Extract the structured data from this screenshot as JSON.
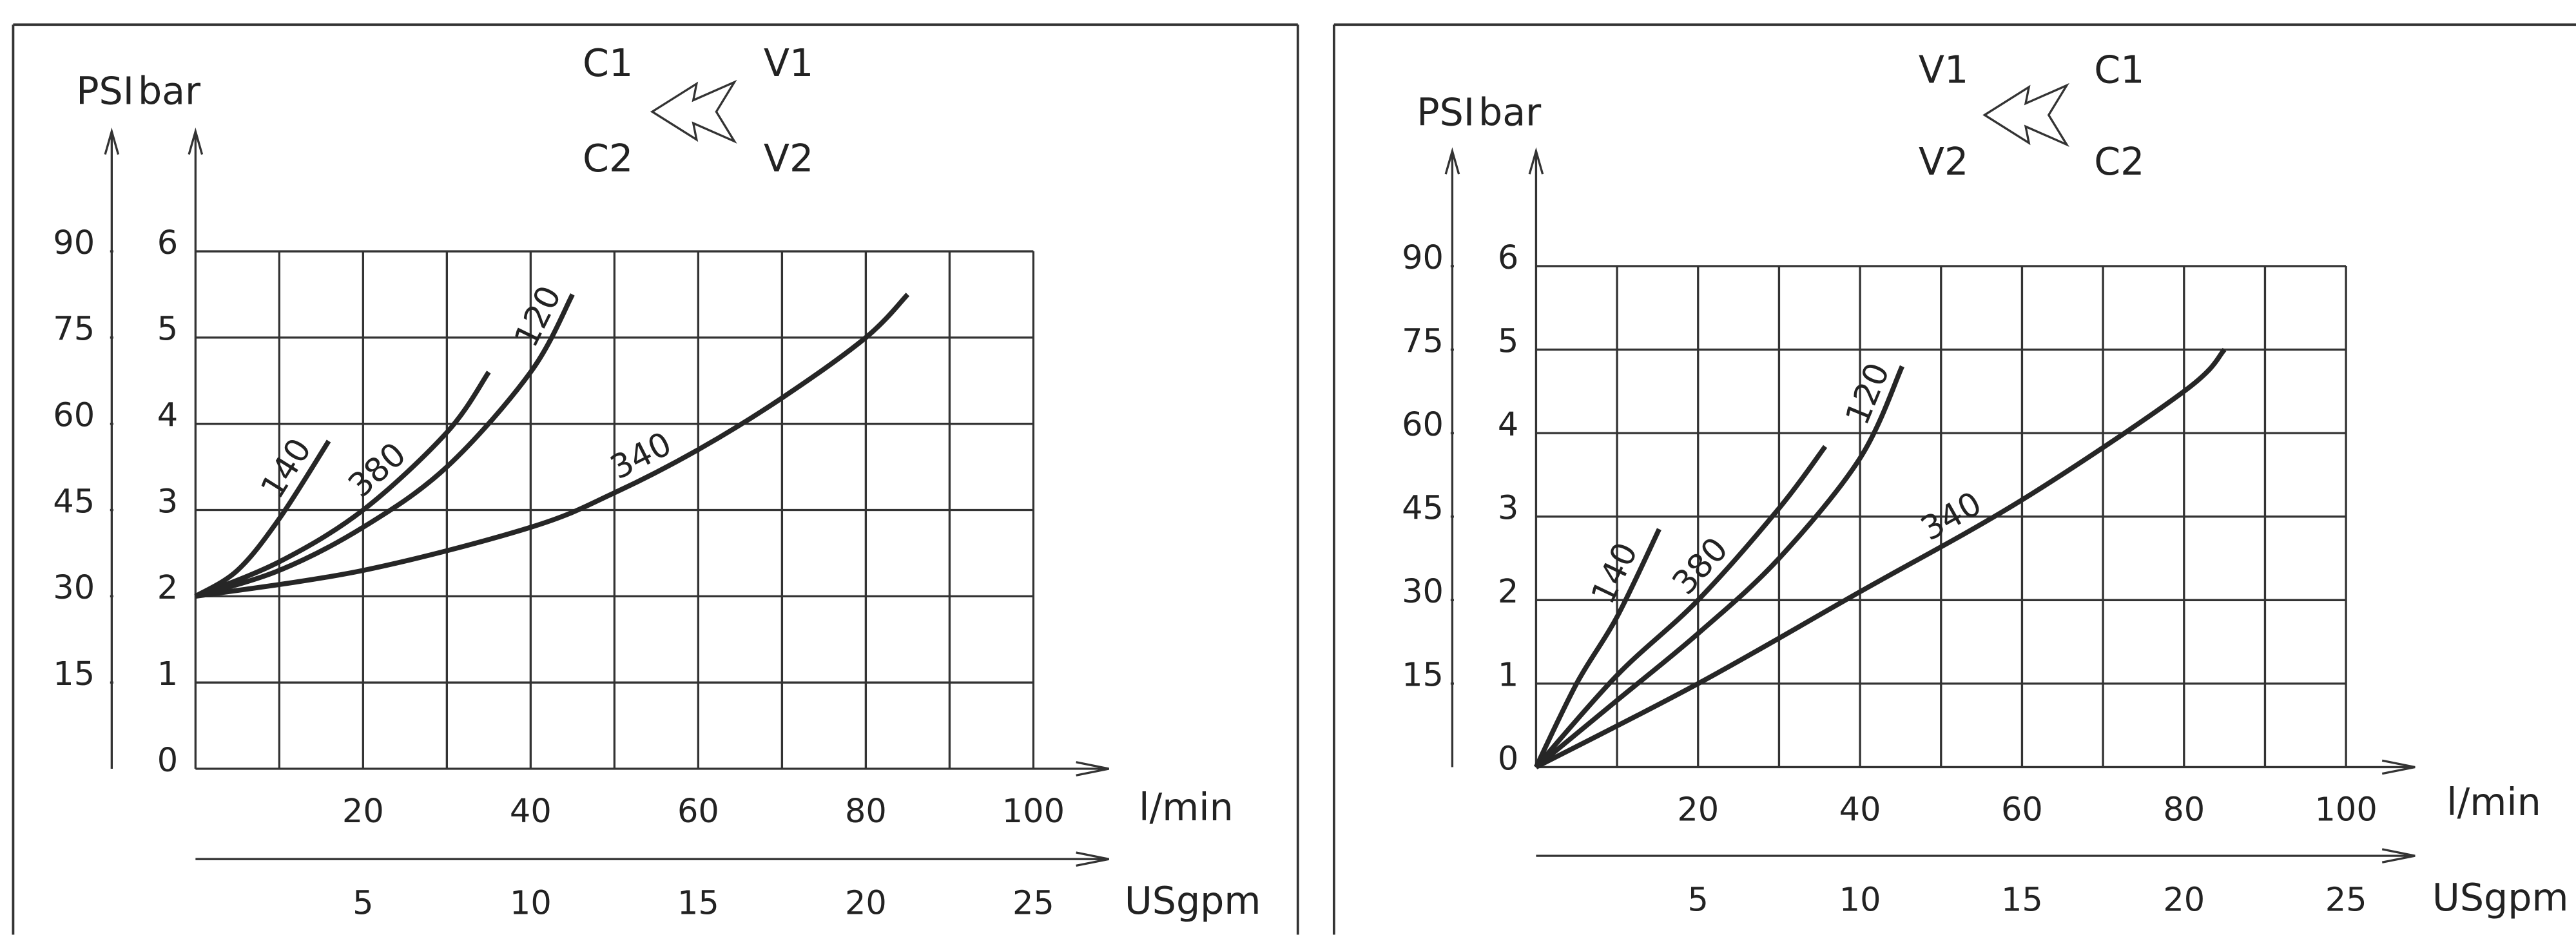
{
  "chart_data": [
    {
      "type": "line",
      "y2_label": "PSI",
      "y_label": "bar",
      "x_label": "l/min",
      "x2_label": "USgpm",
      "ports_left": [
        "C1",
        "C2"
      ],
      "ports_right": [
        "V1",
        "V2"
      ],
      "xlim": [
        0,
        100
      ],
      "xticks": [
        20,
        40,
        60,
        80,
        100
      ],
      "xminorticks": [
        10,
        30,
        50,
        70,
        90
      ],
      "x2lim": [
        0,
        25
      ],
      "x2ticks": [
        5,
        10,
        15,
        20,
        25
      ],
      "ylim": [
        0,
        6
      ],
      "yticks": [
        0,
        1,
        2,
        3,
        4,
        5,
        6
      ],
      "y2lim": [
        0,
        90
      ],
      "y2ticks": [
        15,
        30,
        45,
        60,
        75,
        90
      ],
      "grid": true,
      "series": [
        {
          "name": "140",
          "color": "#262626",
          "x": [
            0,
            5,
            10,
            15.9
          ],
          "values": [
            2,
            2.3,
            2.9,
            3.8
          ]
        },
        {
          "name": "380",
          "color": "#262626",
          "x": [
            0,
            10,
            20,
            30,
            35
          ],
          "values": [
            2,
            2.4,
            3.0,
            3.9,
            4.6
          ]
        },
        {
          "name": "120",
          "color": "#262626",
          "x": [
            0,
            10,
            20,
            30,
            40,
            45
          ],
          "values": [
            2,
            2.3,
            2.8,
            3.5,
            4.6,
            5.5
          ]
        },
        {
          "name": "340",
          "color": "#262626",
          "x": [
            0,
            20,
            40,
            50,
            60,
            70,
            80,
            85
          ],
          "values": [
            2,
            2.3,
            2.8,
            3.2,
            3.7,
            4.3,
            5.0,
            5.5
          ]
        }
      ]
    },
    {
      "type": "line",
      "y2_label": "PSI",
      "y_label": "bar",
      "x_label": "l/min",
      "x2_label": "USgpm",
      "ports_left": [
        "V1",
        "V2"
      ],
      "ports_right": [
        "C1",
        "C2"
      ],
      "xlim": [
        0,
        100
      ],
      "xticks": [
        20,
        40,
        60,
        80,
        100
      ],
      "xminorticks": [
        10,
        30,
        50,
        70,
        90
      ],
      "x2lim": [
        0,
        25
      ],
      "x2ticks": [
        5,
        10,
        15,
        20,
        25
      ],
      "ylim": [
        0,
        6
      ],
      "yticks": [
        0,
        1,
        2,
        3,
        4,
        5,
        6
      ],
      "y2lim": [
        0,
        90
      ],
      "y2ticks": [
        15,
        30,
        45,
        60,
        75,
        90
      ],
      "grid": true,
      "series": [
        {
          "name": "140",
          "color": "#262626",
          "x": [
            0,
            5,
            10,
            15.2
          ],
          "values": [
            0,
            1.0,
            1.8,
            2.85
          ]
        },
        {
          "name": "380",
          "color": "#262626",
          "x": [
            0,
            10,
            20,
            30,
            35.7
          ],
          "values": [
            0,
            1.1,
            2.0,
            3.1,
            3.84
          ]
        },
        {
          "name": "120",
          "color": "#262626",
          "x": [
            0,
            10,
            20,
            30,
            40,
            45.2
          ],
          "values": [
            0,
            0.8,
            1.6,
            2.5,
            3.7,
            4.8
          ]
        },
        {
          "name": "340",
          "color": "#262626",
          "x": [
            0,
            20,
            40,
            60,
            80,
            85
          ],
          "values": [
            0,
            1.0,
            2.1,
            3.2,
            4.5,
            5.0
          ]
        }
      ]
    }
  ]
}
